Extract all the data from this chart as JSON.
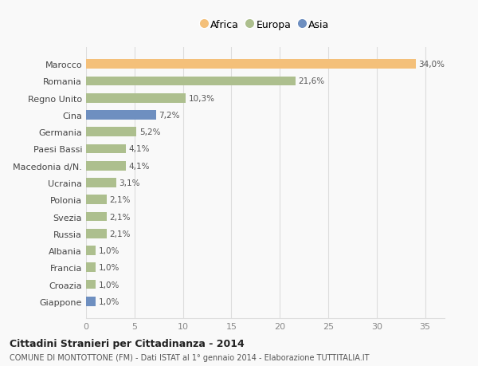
{
  "countries": [
    "Marocco",
    "Romania",
    "Regno Unito",
    "Cina",
    "Germania",
    "Paesi Bassi",
    "Macedonia d/N.",
    "Ucraina",
    "Polonia",
    "Svezia",
    "Russia",
    "Albania",
    "Francia",
    "Croazia",
    "Giappone"
  ],
  "values": [
    34.0,
    21.6,
    10.3,
    7.2,
    5.2,
    4.1,
    4.1,
    3.1,
    2.1,
    2.1,
    2.1,
    1.0,
    1.0,
    1.0,
    1.0
  ],
  "labels": [
    "34,0%",
    "21,6%",
    "10,3%",
    "7,2%",
    "5,2%",
    "4,1%",
    "4,1%",
    "3,1%",
    "2,1%",
    "2,1%",
    "2,1%",
    "1,0%",
    "1,0%",
    "1,0%",
    "1,0%"
  ],
  "continents": [
    "Africa",
    "Europa",
    "Europa",
    "Asia",
    "Europa",
    "Europa",
    "Europa",
    "Europa",
    "Europa",
    "Europa",
    "Europa",
    "Europa",
    "Europa",
    "Europa",
    "Asia"
  ],
  "colors": {
    "Africa": "#F4C07A",
    "Europa": "#ADBF8E",
    "Asia": "#6E8FC0"
  },
  "legend": [
    "Africa",
    "Europa",
    "Asia"
  ],
  "legend_colors": [
    "#F4C07A",
    "#ADBF8E",
    "#6E8FC0"
  ],
  "title1": "Cittadini Stranieri per Cittadinanza - 2014",
  "title2": "COMUNE DI MONTOTTONE (FM) - Dati ISTAT al 1° gennaio 2014 - Elaborazione TUTTITALIA.IT",
  "xlim": [
    0,
    37
  ],
  "xticks": [
    0,
    5,
    10,
    15,
    20,
    25,
    30,
    35
  ],
  "background_color": "#f9f9f9",
  "grid_color": "#dddddd"
}
